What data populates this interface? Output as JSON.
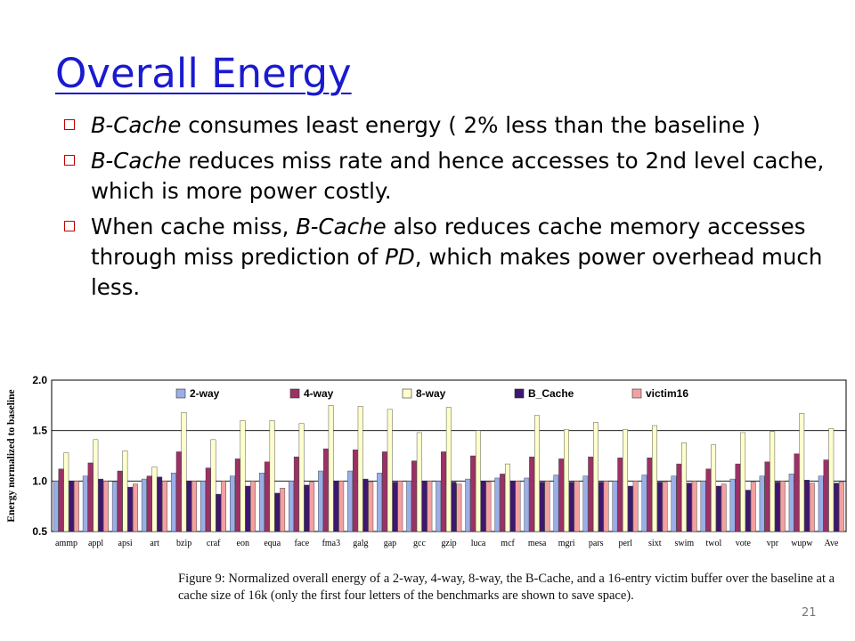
{
  "slide": {
    "title": "Overall Energy",
    "bullets": [
      {
        "parts": [
          {
            "t": "B-Cache",
            "i": true
          },
          {
            "t": " consumes least energy ( 2% less than the baseline )",
            "i": false
          }
        ]
      },
      {
        "parts": [
          {
            "t": "B-Cache",
            "i": true
          },
          {
            "t": " reduces miss rate and hence accesses to 2nd level cache, which is more power costly.",
            "i": false
          }
        ]
      },
      {
        "parts": [
          {
            "t": "When cache miss, ",
            "i": false
          },
          {
            "t": "B-Cache",
            "i": true
          },
          {
            "t": " also reduces cache memory accesses through miss prediction of ",
            "i": false
          },
          {
            "t": "PD",
            "i": true
          },
          {
            "t": ", which makes power overhead much less.",
            "i": false
          }
        ]
      }
    ],
    "caption": "Figure 9: Normalized overall energy of a 2-way, 4-way, 8-way, the B-Cache, and a 16-entry victim buffer over the baseline at a cache size of 16k (only the first four letters of the benchmarks are shown to save space).",
    "slide_number": "21"
  },
  "chart_data": {
    "type": "bar",
    "title": "",
    "xlabel": "",
    "ylabel": "Energy normalized to baseline",
    "ylim": [
      0.5,
      2.0
    ],
    "yticks": [
      "0.5",
      "1.0",
      "1.5",
      "2.0"
    ],
    "grid": true,
    "legend_position": "top",
    "categories": [
      "ammp",
      "appl",
      "apsi",
      "art",
      "bzip",
      "craf",
      "eon",
      "equa",
      "face",
      "fma3",
      "galg",
      "gap",
      "gcc",
      "gzip",
      "luca",
      "mcf",
      "mesa",
      "mgri",
      "pars",
      "perl",
      "sixt",
      "swim",
      "twol",
      "vote",
      "vpr",
      "wupw",
      "Ave"
    ],
    "series": [
      {
        "name": "2-way",
        "color": "#9aaee8",
        "values": [
          1.0,
          1.05,
          0.99,
          1.02,
          1.08,
          1.0,
          1.05,
          1.08,
          1.0,
          1.1,
          1.1,
          1.08,
          1.0,
          1.0,
          1.02,
          1.03,
          1.03,
          1.06,
          1.05,
          1.0,
          1.06,
          1.05,
          1.0,
          1.02,
          1.05,
          1.07,
          1.05
        ]
      },
      {
        "name": "4-way",
        "color": "#9c3166",
        "values": [
          1.12,
          1.18,
          1.1,
          1.05,
          1.29,
          1.13,
          1.22,
          1.19,
          1.24,
          1.32,
          1.31,
          1.29,
          1.2,
          1.29,
          1.25,
          1.07,
          1.24,
          1.22,
          1.24,
          1.23,
          1.23,
          1.17,
          1.12,
          1.17,
          1.19,
          1.27,
          1.21
        ]
      },
      {
        "name": "8-way",
        "color": "#ffffcc",
        "values": [
          1.28,
          1.41,
          1.3,
          1.14,
          1.68,
          1.41,
          1.6,
          1.6,
          1.57,
          1.75,
          1.74,
          1.71,
          1.48,
          1.73,
          1.5,
          1.17,
          1.65,
          1.51,
          1.58,
          1.51,
          1.55,
          1.38,
          1.36,
          1.48,
          1.49,
          1.67,
          1.52
        ]
      },
      {
        "name": "B_Cache",
        "color": "#3d1770",
        "values": [
          1.0,
          1.02,
          0.94,
          1.04,
          1.0,
          0.87,
          0.95,
          0.88,
          0.96,
          1.0,
          1.02,
          0.99,
          1.0,
          0.99,
          1.0,
          1.0,
          0.99,
          0.99,
          0.99,
          0.95,
          0.99,
          0.98,
          0.95,
          0.91,
          0.99,
          1.01,
          0.98
        ]
      },
      {
        "name": "victim16",
        "color": "#f4a0a0",
        "values": [
          1.0,
          1.0,
          0.97,
          1.0,
          1.0,
          1.0,
          1.0,
          0.93,
          0.99,
          1.0,
          0.99,
          1.0,
          1.0,
          0.97,
          0.99,
          1.0,
          1.0,
          1.0,
          1.0,
          1.0,
          0.99,
          1.0,
          0.97,
          0.99,
          1.0,
          0.98,
          0.99
        ]
      }
    ]
  }
}
